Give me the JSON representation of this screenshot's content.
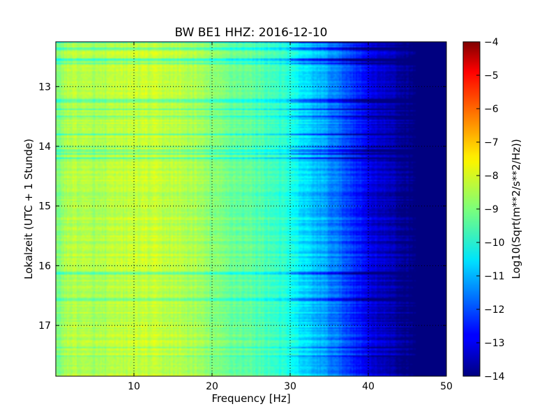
{
  "chart_data": {
    "type": "heatmap",
    "title": "BW BE1 HHZ: 2016-12-10",
    "xlabel": "Frequency [Hz]",
    "ylabel": "Lokalzeit (UTC + 1 Stunde)",
    "xlim": [
      0,
      50
    ],
    "ylim": [
      12.25,
      17.85
    ],
    "x_ticks": [
      10,
      20,
      30,
      40,
      50
    ],
    "y_ticks": [
      13,
      14,
      15,
      16,
      17
    ],
    "grid": true,
    "colormap": "jet",
    "colorbar": {
      "label": "Log10(Sqrt(m**2/s**2/Hz))",
      "range": [
        -14,
        -4
      ],
      "ticks": [
        -4,
        -5,
        -6,
        -7,
        -8,
        -9,
        -10,
        -11,
        -12,
        -13,
        -14
      ],
      "tick_labels": [
        "−4",
        "−5",
        "−6",
        "−7",
        "−8",
        "−9",
        "−10",
        "−11",
        "−12",
        "−13",
        "−14"
      ]
    },
    "spectrum_profile": {
      "frequency_hz": [
        0,
        2,
        5,
        8,
        10,
        12,
        15,
        18,
        20,
        22,
        25,
        28,
        30,
        32,
        34,
        36,
        38,
        40,
        42,
        44,
        45,
        46,
        50
      ],
      "log10_amplitude": [
        -9.0,
        -8.4,
        -8.6,
        -8.4,
        -8.3,
        -8.3,
        -8.4,
        -8.6,
        -8.9,
        -9.1,
        -9.3,
        -9.6,
        -10.0,
        -10.6,
        -11.0,
        -11.6,
        -12.2,
        -12.9,
        -13.3,
        -13.7,
        -13.9,
        -14.0,
        -14.0
      ]
    }
  }
}
